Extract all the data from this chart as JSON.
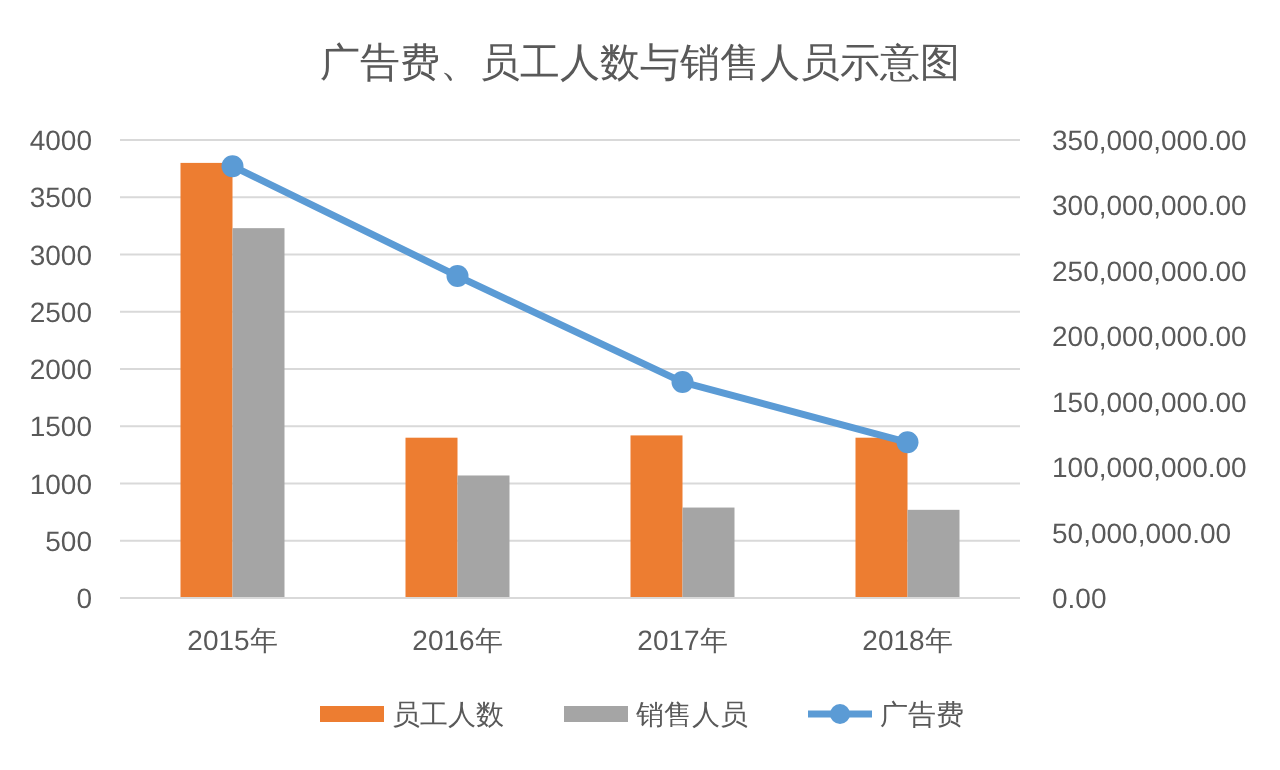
{
  "chart_data": {
    "type": "bar",
    "title": "广告费、员工人数与销售人员示意图",
    "categories": [
      "2015年",
      "2016年",
      "2017年",
      "2018年"
    ],
    "series": [
      {
        "name": "员工人数",
        "color": "#ed7d31",
        "values": [
          3800,
          1400,
          1420,
          1400
        ]
      },
      {
        "name": "销售人员",
        "color": "#a5a5a5",
        "values": [
          3230,
          1070,
          790,
          770
        ]
      },
      {
        "name": "广告费",
        "type": "line",
        "axis": "y2",
        "color": "#5b9bd5",
        "marker": "circle",
        "values": [
          330000000,
          246000000,
          165000000,
          119000000
        ]
      }
    ],
    "ylim": [
      0,
      4000
    ],
    "yticks": [
      0,
      500,
      1000,
      1500,
      2000,
      2500,
      3000,
      3500,
      4000
    ],
    "y2lim": [
      0,
      350000000
    ],
    "y2ticks": [
      {
        "value": 0,
        "label": "0.00"
      },
      {
        "value": 50000000,
        "label": "50,000,000.00"
      },
      {
        "value": 100000000,
        "label": "100,000,000.00"
      },
      {
        "value": 150000000,
        "label": "150,000,000.00"
      },
      {
        "value": 200000000,
        "label": "200,000,000.00"
      },
      {
        "value": 250000000,
        "label": "250,000,000.00"
      },
      {
        "value": 300000000,
        "label": "300,000,000.00"
      },
      {
        "value": 350000000,
        "label": "350,000,000.00"
      }
    ],
    "grid": "y",
    "legend": "bottom"
  }
}
